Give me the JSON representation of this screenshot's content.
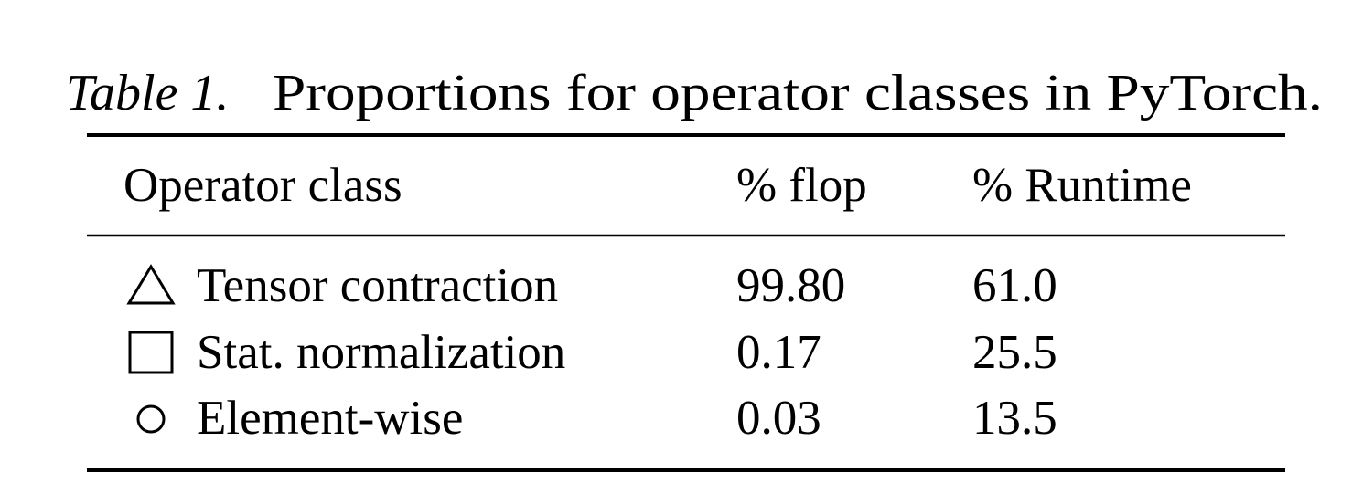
{
  "caption": {
    "label": "Table 1.",
    "text": "Proportions for operator classes in PyTorch."
  },
  "table": {
    "header": [
      "Operator class",
      "% flop",
      "% Runtime"
    ],
    "rows": [
      [
        "Tensor contraction",
        "99.80",
        "61.0"
      ],
      [
        "Stat. normalization",
        "0.17",
        "25.5"
      ],
      [
        "Element-wise",
        "0.03",
        "13.5"
      ]
    ]
  }
}
